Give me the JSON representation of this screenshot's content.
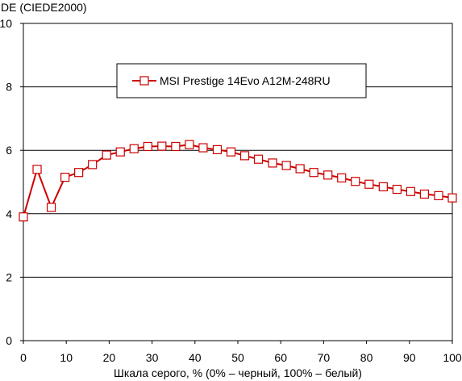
{
  "chart_data": {
    "type": "line",
    "ylabel": "DE (CIEDE2000)",
    "xlabel": "Шкала серого, % (0% – черный, 100% – белый)",
    "xlim": [
      0,
      100
    ],
    "ylim": [
      0,
      10
    ],
    "x_ticks": [
      "0",
      "10",
      "20",
      "30",
      "40",
      "50",
      "60",
      "70",
      "80",
      "90",
      "100"
    ],
    "y_ticks": [
      "0",
      "2",
      "4",
      "6",
      "8",
      "10"
    ],
    "grid": "horizontal",
    "legend_position": "top-center",
    "series": [
      {
        "name": "MSI Prestige 14Evo A12M-248RU",
        "color": "#cc0000",
        "marker": "square-open",
        "x": [
          0,
          3.2,
          6.5,
          9.7,
          12.9,
          16.1,
          19.4,
          22.6,
          25.8,
          29.0,
          32.3,
          35.5,
          38.7,
          41.9,
          45.2,
          48.4,
          51.6,
          54.8,
          58.1,
          61.3,
          64.5,
          67.7,
          71.0,
          74.2,
          77.4,
          80.6,
          83.9,
          87.1,
          90.3,
          93.5,
          96.8,
          100
        ],
        "values": [
          3.9,
          5.4,
          4.2,
          5.15,
          5.3,
          5.55,
          5.85,
          5.95,
          6.05,
          6.12,
          6.13,
          6.12,
          6.18,
          6.08,
          6.02,
          5.95,
          5.83,
          5.72,
          5.6,
          5.52,
          5.42,
          5.3,
          5.22,
          5.13,
          5.02,
          4.93,
          4.85,
          4.77,
          4.7,
          4.62,
          4.57,
          4.5
        ]
      }
    ]
  }
}
